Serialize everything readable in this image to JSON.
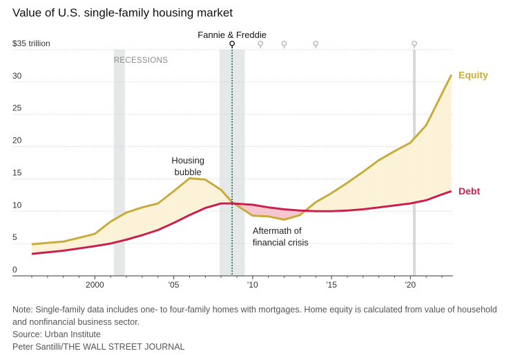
{
  "header": {
    "title": "Value of U.S. single-family housing market"
  },
  "footer": {
    "note": "Note: Single-family data includes one- to four-family homes with mortgages. Home equity is calculated from value of household and nonfinancial business sector.",
    "source": "Source: Urban Institute",
    "credit": "Peter Santilli/THE WALL STREET JOURNAL"
  },
  "colors": {
    "equity": "#c8ac3b",
    "debt": "#c8204f",
    "equity_fill": "#fbf2d8",
    "debt_fill": "#f7c7cf",
    "recession": "#e5e8e8",
    "grid": "#c9c9c9"
  },
  "chart_data": {
    "type": "line",
    "xlim": [
      1996,
      2022.7
    ],
    "ylim": [
      0,
      35
    ],
    "y_ticks": [
      0,
      5,
      10,
      15,
      20,
      25,
      30,
      35
    ],
    "y_tick_labels": [
      "0",
      "5",
      "10",
      "15",
      "20",
      "25",
      "30",
      "$35 trillion"
    ],
    "x_ticks": [
      2000,
      2005,
      2010,
      2015,
      2020
    ],
    "x_tick_labels": [
      "2000",
      "'05",
      "'10",
      "'15",
      "'20"
    ],
    "grid": true,
    "recessions": {
      "label": "RECESSIONS",
      "periods": [
        [
          2001.2,
          2001.9
        ],
        [
          2007.9,
          2009.5
        ]
      ]
    },
    "events": {
      "label": "Fannie & Freddie",
      "highlighted": 2008.7,
      "markers": [
        2008.7,
        2010.5,
        2012,
        2014,
        2020.25
      ]
    },
    "series": [
      {
        "name": "Equity",
        "x": [
          1996,
          1998,
          2000,
          2001,
          2002,
          2003,
          2004,
          2005,
          2006,
          2007,
          2008,
          2008.7,
          2010,
          2011,
          2012,
          2013,
          2014,
          2015,
          2016,
          2017,
          2018,
          2019,
          2020,
          2021,
          2022,
          2022.6
        ],
        "y": [
          4.9,
          5.3,
          6.5,
          8.4,
          9.8,
          10.6,
          11.2,
          13.1,
          15.1,
          14.9,
          13.3,
          11.4,
          9.3,
          9.2,
          8.7,
          9.4,
          11.4,
          12.8,
          14.4,
          16.1,
          17.9,
          19.3,
          20.6,
          23.3,
          28.2,
          31.1
        ]
      },
      {
        "name": "Debt",
        "x": [
          1996,
          1998,
          2000,
          2001,
          2002,
          2003,
          2004,
          2005,
          2006,
          2007,
          2008,
          2008.7,
          2010,
          2011,
          2012,
          2013,
          2014,
          2015,
          2016,
          2017,
          2018,
          2019,
          2020,
          2021,
          2022,
          2022.6
        ],
        "y": [
          3.4,
          3.9,
          4.6,
          5.0,
          5.6,
          6.3,
          7.1,
          8.2,
          9.4,
          10.5,
          11.2,
          11.2,
          11.0,
          10.6,
          10.3,
          10.1,
          10.0,
          10.0,
          10.1,
          10.3,
          10.6,
          10.9,
          11.2,
          11.7,
          12.6,
          13.1
        ]
      }
    ],
    "annotations": [
      {
        "lines": [
          "Housing",
          "bubble"
        ],
        "x": 2005.9,
        "y": 17.4,
        "anchor": "middle"
      },
      {
        "lines": [
          "Aftermath of",
          "financial crisis"
        ],
        "x": 2010,
        "y": 6.5,
        "anchor": "start"
      }
    ]
  }
}
